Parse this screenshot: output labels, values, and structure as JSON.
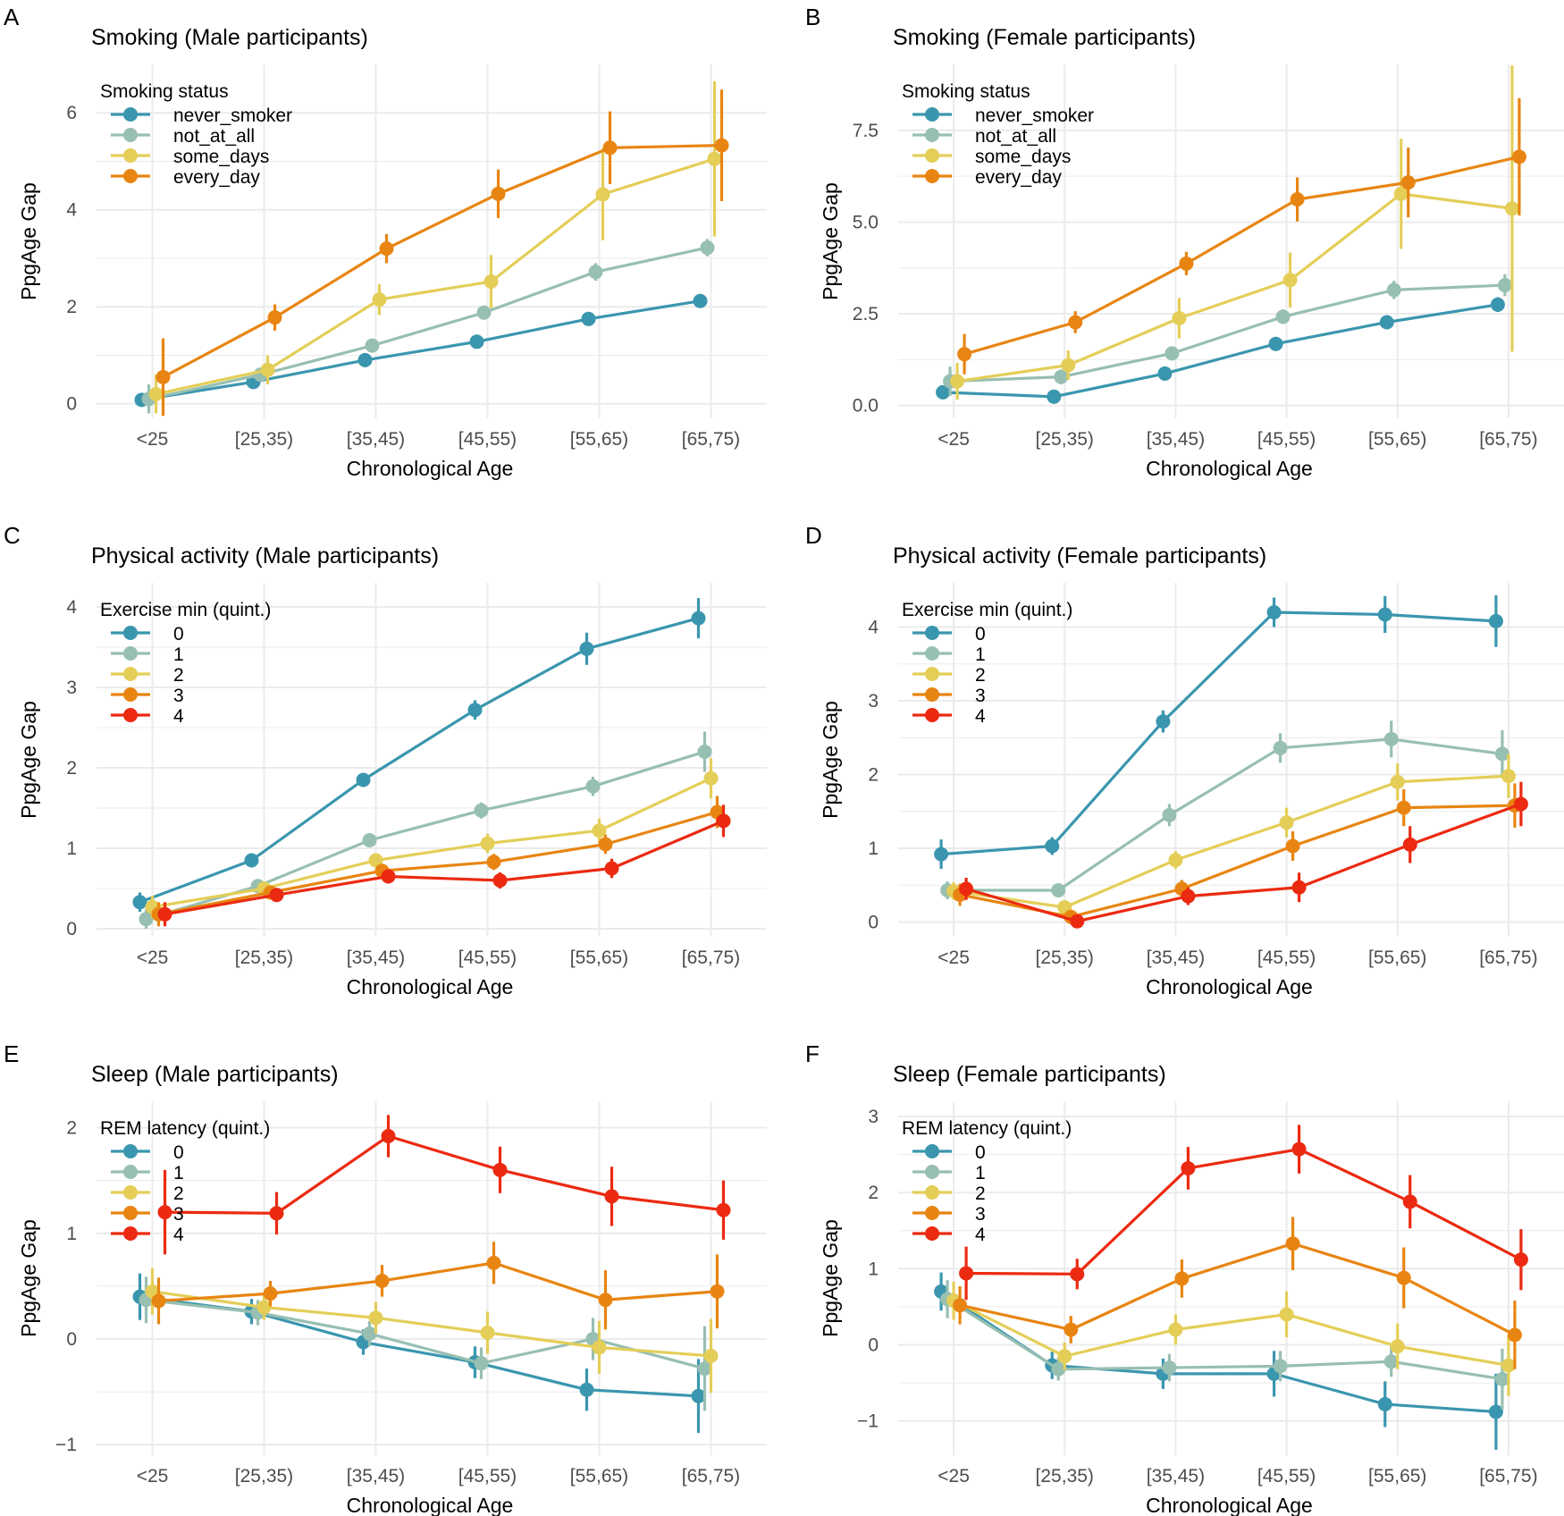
{
  "colors": {
    "q0": "#3A96AE",
    "q1": "#97BFB2",
    "q2": "#E4CE58",
    "q3": "#E88512",
    "q4": "#EB2A11",
    "grid": "#EBEBEB",
    "text": "#000000",
    "tick": "#4D4D4D"
  },
  "chart_data": [
    {
      "panel_label": "A",
      "type": "line",
      "title": "Smoking (Male participants)",
      "xlabel": "Chronological Age",
      "ylabel": "PpgAge Gap",
      "categories": [
        "<25",
        "[25,35)",
        "[35,45)",
        "[45,55)",
        "[55,65)",
        "[65,75)"
      ],
      "ylim": [
        -0.3,
        7.0
      ],
      "yticks": [
        "0",
        "2",
        "4",
        "6"
      ],
      "ytick_values": [
        0,
        2,
        4,
        6
      ],
      "legend_title": "Smoking status",
      "series": [
        {
          "name": "never_smoker",
          "color": "#3A96AE",
          "values": [
            0.08,
            0.45,
            0.9,
            1.28,
            1.75,
            2.12
          ],
          "err": [
            0.05,
            0.05,
            0.05,
            0.06,
            0.07,
            0.12
          ]
        },
        {
          "name": "not_at_all",
          "color": "#97BFB2",
          "values": [
            0.1,
            0.6,
            1.2,
            1.88,
            2.72,
            3.22
          ],
          "err": [
            0.3,
            0.1,
            0.1,
            0.12,
            0.18,
            0.18
          ]
        },
        {
          "name": "some_days",
          "color": "#E4CE58",
          "values": [
            0.2,
            0.7,
            2.15,
            2.52,
            4.32,
            5.05
          ],
          "err": [
            0.4,
            0.3,
            0.32,
            0.55,
            0.95,
            1.6
          ]
        },
        {
          "name": "every_day",
          "color": "#E88512",
          "values": [
            0.55,
            1.78,
            3.2,
            4.33,
            5.28,
            5.33
          ],
          "err": [
            0.8,
            0.27,
            0.3,
            0.5,
            0.75,
            1.15
          ]
        }
      ]
    },
    {
      "panel_label": "B",
      "type": "line",
      "title": "Smoking (Female participants)",
      "xlabel": "Chronological Age",
      "ylabel": "PpgAge Gap",
      "categories": [
        "<25",
        "[25,35)",
        "[35,45)",
        "[45,55)",
        "[55,65)",
        "[65,75)"
      ],
      "ylim": [
        -0.35,
        9.3
      ],
      "yticks": [
        "0.0",
        "2.5",
        "5.0",
        "7.5"
      ],
      "ytick_values": [
        0,
        2.5,
        5,
        7.5
      ],
      "legend_title": "Smoking status",
      "series": [
        {
          "name": "never_smoker",
          "color": "#3A96AE",
          "values": [
            0.36,
            0.24,
            0.87,
            1.68,
            2.27,
            2.75
          ],
          "err": [
            0.1,
            0.1,
            0.1,
            0.12,
            0.15,
            0.2
          ]
        },
        {
          "name": "not_at_all",
          "color": "#97BFB2",
          "values": [
            0.66,
            0.78,
            1.42,
            2.42,
            3.15,
            3.28
          ],
          "err": [
            0.4,
            0.2,
            0.18,
            0.2,
            0.25,
            0.3
          ]
        },
        {
          "name": "some_days",
          "color": "#E4CE58",
          "values": [
            0.66,
            1.1,
            2.38,
            3.42,
            5.77,
            5.37
          ],
          "err": [
            0.5,
            0.4,
            0.55,
            0.75,
            1.5,
            3.9
          ]
        },
        {
          "name": "every_day",
          "color": "#E88512",
          "values": [
            1.4,
            2.27,
            3.87,
            5.62,
            6.08,
            6.78
          ],
          "err": [
            0.55,
            0.3,
            0.32,
            0.6,
            0.95,
            1.6
          ]
        }
      ]
    },
    {
      "panel_label": "C",
      "type": "line",
      "title": "Physical activity (Male participants)",
      "xlabel": "Chronological Age",
      "ylabel": "PpgAge Gap",
      "categories": [
        "<25",
        "[25,35)",
        "[35,45)",
        "[45,55)",
        "[55,65)",
        "[65,75)"
      ],
      "ylim": [
        -0.1,
        4.3
      ],
      "yticks": [
        "0",
        "1",
        "2",
        "3",
        "4"
      ],
      "ytick_values": [
        0,
        1,
        2,
        3,
        4
      ],
      "legend_title": "Exercise min (quint.)",
      "series": [
        {
          "name": "0",
          "color": "#3A96AE",
          "values": [
            0.33,
            0.85,
            1.85,
            2.72,
            3.48,
            3.86
          ],
          "err": [
            0.12,
            0.06,
            0.08,
            0.12,
            0.2,
            0.25
          ]
        },
        {
          "name": "1",
          "color": "#97BFB2",
          "values": [
            0.12,
            0.53,
            1.1,
            1.47,
            1.77,
            2.2
          ],
          "err": [
            0.12,
            0.08,
            0.08,
            0.1,
            0.12,
            0.25
          ]
        },
        {
          "name": "2",
          "color": "#E4CE58",
          "values": [
            0.27,
            0.5,
            0.85,
            1.06,
            1.22,
            1.87
          ],
          "err": [
            0.14,
            0.08,
            0.08,
            0.12,
            0.15,
            0.25
          ]
        },
        {
          "name": "3",
          "color": "#E88512",
          "values": [
            0.18,
            0.45,
            0.72,
            0.83,
            1.05,
            1.45
          ],
          "err": [
            0.15,
            0.08,
            0.08,
            0.1,
            0.12,
            0.2
          ]
        },
        {
          "name": "4",
          "color": "#EB2A11",
          "values": [
            0.18,
            0.42,
            0.65,
            0.6,
            0.75,
            1.34
          ],
          "err": [
            0.15,
            0.08,
            0.08,
            0.1,
            0.12,
            0.2
          ]
        }
      ]
    },
    {
      "panel_label": "D",
      "type": "line",
      "title": "Physical activity (Female participants)",
      "xlabel": "Chronological Age",
      "ylabel": "PpgAge Gap",
      "categories": [
        "<25",
        "[25,35)",
        "[35,45)",
        "[45,55)",
        "[55,65)",
        "[65,75)"
      ],
      "ylim": [
        -0.2,
        4.6
      ],
      "yticks": [
        "0",
        "1",
        "2",
        "3",
        "4"
      ],
      "ytick_values": [
        0,
        1,
        2,
        3,
        4
      ],
      "legend_title": "Exercise min (quint.)",
      "series": [
        {
          "name": "0",
          "color": "#3A96AE",
          "values": [
            0.92,
            1.03,
            2.72,
            4.2,
            4.17,
            4.08
          ],
          "err": [
            0.2,
            0.12,
            0.15,
            0.2,
            0.25,
            0.35
          ]
        },
        {
          "name": "1",
          "color": "#97BFB2",
          "values": [
            0.43,
            0.43,
            1.45,
            2.36,
            2.48,
            2.28
          ],
          "err": [
            0.12,
            0.08,
            0.15,
            0.2,
            0.25,
            0.32
          ]
        },
        {
          "name": "2",
          "color": "#E4CE58",
          "values": [
            0.42,
            0.2,
            0.84,
            1.35,
            1.9,
            1.98
          ],
          "err": [
            0.12,
            0.08,
            0.12,
            0.2,
            0.25,
            0.3
          ]
        },
        {
          "name": "3",
          "color": "#E88512",
          "values": [
            0.37,
            0.07,
            0.45,
            1.03,
            1.55,
            1.58
          ],
          "err": [
            0.15,
            0.08,
            0.12,
            0.2,
            0.25,
            0.3
          ]
        },
        {
          "name": "4",
          "color": "#EB2A11",
          "values": [
            0.45,
            0.01,
            0.35,
            0.47,
            1.05,
            1.6
          ],
          "err": [
            0.15,
            0.08,
            0.12,
            0.2,
            0.25,
            0.3
          ]
        }
      ]
    },
    {
      "panel_label": "E",
      "type": "line",
      "title": "Sleep (Male participants)",
      "xlabel": "Chronological Age",
      "ylabel": "PpgAge Gap",
      "categories": [
        "<25",
        "[25,35)",
        "[35,45)",
        "[45,55)",
        "[55,65)",
        "[65,75)"
      ],
      "ylim": [
        -1.1,
        2.25
      ],
      "yticks": [
        "−1",
        "0",
        "1",
        "2"
      ],
      "ytick_values": [
        -1,
        0,
        1,
        2
      ],
      "legend_title": "REM latency (quint.)",
      "series": [
        {
          "name": "0",
          "color": "#3A96AE",
          "values": [
            0.4,
            0.26,
            -0.03,
            -0.22,
            -0.48,
            -0.54
          ],
          "err": [
            0.22,
            0.12,
            0.12,
            0.15,
            0.2,
            0.35
          ]
        },
        {
          "name": "1",
          "color": "#97BFB2",
          "values": [
            0.37,
            0.25,
            0.05,
            -0.23,
            0.0,
            -0.28
          ],
          "err": [
            0.22,
            0.12,
            0.12,
            0.15,
            0.2,
            0.4
          ]
        },
        {
          "name": "2",
          "color": "#E4CE58",
          "values": [
            0.45,
            0.3,
            0.2,
            0.06,
            -0.08,
            -0.16
          ],
          "err": [
            0.22,
            0.12,
            0.15,
            0.2,
            0.25,
            0.35
          ]
        },
        {
          "name": "3",
          "color": "#E88512",
          "values": [
            0.36,
            0.43,
            0.55,
            0.72,
            0.37,
            0.45
          ],
          "err": [
            0.22,
            0.12,
            0.15,
            0.2,
            0.28,
            0.35
          ]
        },
        {
          "name": "4",
          "color": "#EB2A11",
          "values": [
            1.2,
            1.19,
            1.92,
            1.6,
            1.35,
            1.22
          ],
          "err": [
            0.4,
            0.2,
            0.2,
            0.22,
            0.28,
            0.28
          ]
        }
      ]
    },
    {
      "panel_label": "F",
      "type": "line",
      "title": "Sleep (Female participants)",
      "xlabel": "Chronological Age",
      "ylabel": "PpgAge Gap",
      "categories": [
        "<25",
        "[25,35)",
        "[35,45)",
        "[45,55)",
        "[55,65)",
        "[65,75)"
      ],
      "ylim": [
        -1.45,
        3.2
      ],
      "yticks": [
        "−1",
        "0",
        "1",
        "2",
        "3"
      ],
      "ytick_values": [
        -1,
        0,
        1,
        2,
        3
      ],
      "legend_title": "REM latency (quint.)",
      "series": [
        {
          "name": "0",
          "color": "#3A96AE",
          "values": [
            0.7,
            -0.27,
            -0.38,
            -0.38,
            -0.78,
            -0.88
          ],
          "err": [
            0.25,
            0.18,
            0.2,
            0.3,
            0.3,
            0.5
          ]
        },
        {
          "name": "1",
          "color": "#97BFB2",
          "values": [
            0.6,
            -0.32,
            -0.3,
            -0.28,
            -0.22,
            -0.45
          ],
          "err": [
            0.25,
            0.15,
            0.18,
            0.2,
            0.2,
            0.4
          ]
        },
        {
          "name": "2",
          "color": "#E4CE58",
          "values": [
            0.58,
            -0.15,
            0.2,
            0.4,
            -0.02,
            -0.27
          ],
          "err": [
            0.25,
            0.18,
            0.2,
            0.3,
            0.3,
            0.4
          ]
        },
        {
          "name": "3",
          "color": "#E88512",
          "values": [
            0.52,
            0.2,
            0.87,
            1.33,
            0.88,
            0.13
          ],
          "err": [
            0.25,
            0.18,
            0.25,
            0.35,
            0.4,
            0.45
          ]
        },
        {
          "name": "4",
          "color": "#EB2A11",
          "values": [
            0.94,
            0.93,
            2.32,
            2.57,
            1.88,
            1.12
          ],
          "err": [
            0.35,
            0.2,
            0.28,
            0.32,
            0.35,
            0.4
          ]
        }
      ]
    }
  ]
}
